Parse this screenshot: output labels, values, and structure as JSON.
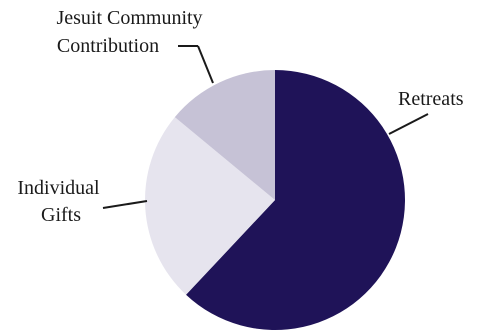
{
  "chart_data": {
    "type": "pie",
    "slices": [
      {
        "label_lines": [
          "Retreats"
        ],
        "value": 62,
        "color": "#1f1358"
      },
      {
        "label_lines": [
          "Individual",
          "Gifts"
        ],
        "value": 24,
        "color": "#e6e4ee"
      },
      {
        "label_lines": [
          "Jesuit Community",
          "Contribution"
        ],
        "value": 14,
        "color": "#c6c2d6"
      }
    ],
    "start_angle_deg": 0,
    "direction": "clockwise",
    "legend": "callout labels",
    "title": ""
  }
}
